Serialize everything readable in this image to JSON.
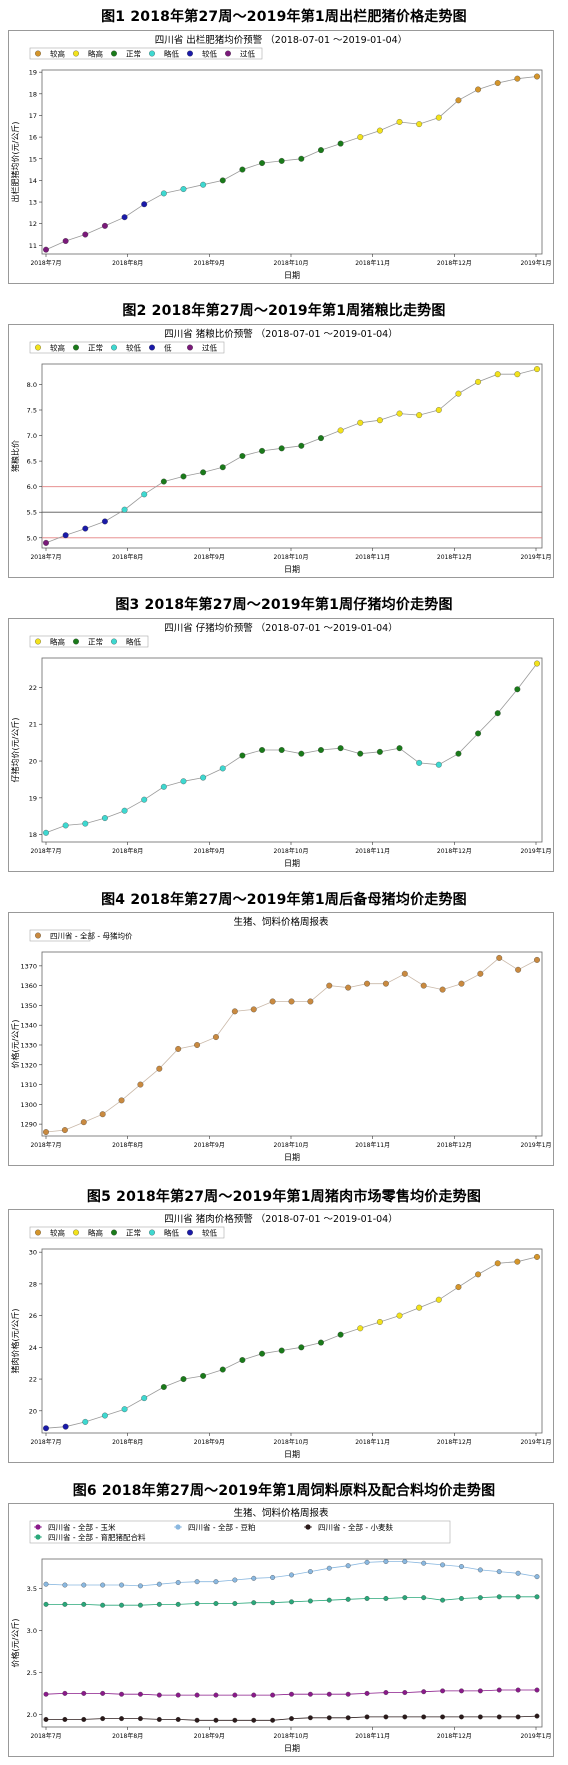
{
  "chart_data": [
    {
      "type": "line",
      "figure_title": "图1  2018年第27周～2019年第1周出栏肥猪价格走势图",
      "title": "四川省 出栏肥猪均价预警",
      "subtitle": "（2018-07-01 ～2019-01-04）",
      "xlabel": "日期",
      "ylabel": "出栏肥猪均价(元/公斤)",
      "x_ticks": [
        "2018年7月",
        "2018年8月",
        "2018年9月",
        "2018年10月",
        "2018年11月",
        "2018年12月",
        "2019年1月"
      ],
      "y_ticks": [
        "11",
        "12",
        "13",
        "14",
        "15",
        "16",
        "17",
        "18",
        "19"
      ],
      "ylim": [
        10.6,
        19.1
      ],
      "grid": false,
      "legend": [
        {
          "label": "较高",
          "color": "#d4952b"
        },
        {
          "label": "略高",
          "color": "#f2e21c"
        },
        {
          "label": "正常",
          "color": "#1a7a1a"
        },
        {
          "label": "略低",
          "color": "#3ed8d0"
        },
        {
          "label": "较低",
          "color": "#1a1aa8"
        },
        {
          "label": "过低",
          "color": "#7a1a7a"
        }
      ],
      "series": [
        {
          "values": [
            10.8,
            11.2,
            11.5,
            11.9,
            12.3,
            12.9,
            13.4,
            13.6,
            13.8,
            14.0,
            14.5,
            14.8,
            14.9,
            15.0,
            15.4,
            15.7,
            16.0,
            16.3,
            16.7,
            16.6,
            16.9,
            17.7,
            18.2,
            18.5,
            18.7,
            18.8
          ],
          "levels": [
            5,
            5,
            5,
            5,
            4,
            4,
            3,
            3,
            3,
            2,
            2,
            2,
            2,
            2,
            2,
            2,
            1,
            1,
            1,
            1,
            1,
            0,
            0,
            0,
            0,
            0
          ]
        }
      ]
    },
    {
      "type": "line",
      "figure_title": "图2  2018年第27周～2019年第1周猪粮比走势图",
      "title": "四川省 猪粮比价预警",
      "subtitle": "（2018-07-01 ～2019-01-04）",
      "xlabel": "日期",
      "ylabel": "猪粮比价",
      "x_ticks": [
        "2018年7月",
        "2018年8月",
        "2018年9月",
        "2018年10月",
        "2018年11月",
        "2018年12月",
        "2019年1月"
      ],
      "y_ticks": [
        "5.0",
        "5.5",
        "6.0",
        "6.5",
        "7.0",
        "7.5",
        "8.0"
      ],
      "ylim": [
        4.8,
        8.4
      ],
      "grid": false,
      "reference_lines": [
        {
          "y": 5.0,
          "color": "#e38080"
        },
        {
          "y": 5.5,
          "color": "#555555"
        },
        {
          "y": 6.0,
          "color": "#e38080"
        }
      ],
      "legend": [
        {
          "label": "较高",
          "color": "#f2e21c"
        },
        {
          "label": "正常",
          "color": "#1a7a1a"
        },
        {
          "label": "较低",
          "color": "#3ed8d0"
        },
        {
          "label": "低",
          "color": "#1a1aa8"
        },
        {
          "label": "过低",
          "color": "#7a1a7a"
        }
      ],
      "series": [
        {
          "values": [
            4.9,
            5.05,
            5.18,
            5.32,
            5.55,
            5.85,
            6.1,
            6.2,
            6.28,
            6.38,
            6.6,
            6.7,
            6.75,
            6.8,
            6.95,
            7.1,
            7.25,
            7.3,
            7.43,
            7.4,
            7.5,
            7.82,
            8.05,
            8.2,
            8.2,
            8.3
          ],
          "levels": [
            4,
            3,
            3,
            3,
            2,
            2,
            1,
            1,
            1,
            1,
            1,
            1,
            1,
            1,
            1,
            0,
            0,
            0,
            0,
            0,
            0,
            0,
            0,
            0,
            0,
            0
          ]
        }
      ]
    },
    {
      "type": "line",
      "figure_title": "图3  2018年第27周～2019年第1周仔猪均价走势图",
      "title": "四川省 仔猪均价预警",
      "subtitle": "（2018-07-01 ～2019-01-04）",
      "xlabel": "日期",
      "ylabel": "仔猪均价(元/公斤)",
      "x_ticks": [
        "2018年7月",
        "2018年8月",
        "2018年9月",
        "2018年10月",
        "2018年11月",
        "2018年12月",
        "2019年1月"
      ],
      "y_ticks": [
        "18",
        "19",
        "20",
        "21",
        "22"
      ],
      "ylim": [
        17.8,
        22.8
      ],
      "grid": false,
      "legend": [
        {
          "label": "略高",
          "color": "#f2e21c"
        },
        {
          "label": "正常",
          "color": "#1a7a1a"
        },
        {
          "label": "略低",
          "color": "#3ed8d0"
        }
      ],
      "series": [
        {
          "values": [
            18.05,
            18.25,
            18.3,
            18.45,
            18.65,
            18.95,
            19.3,
            19.45,
            19.55,
            19.8,
            20.15,
            20.3,
            20.3,
            20.2,
            20.3,
            20.35,
            20.2,
            20.25,
            20.35,
            19.95,
            19.9,
            20.2,
            20.75,
            21.3,
            21.95,
            22.65
          ],
          "levels": [
            2,
            2,
            2,
            2,
            2,
            2,
            2,
            2,
            2,
            2,
            1,
            1,
            1,
            1,
            1,
            1,
            1,
            1,
            1,
            2,
            2,
            1,
            1,
            1,
            1,
            0
          ]
        }
      ]
    },
    {
      "type": "line",
      "figure_title": "图4  2018年第27周～2019年第1周后备母猪均价走势图",
      "title": "生猪、饲料价格周报表",
      "xlabel": "日期",
      "ylabel": "价格(元/公斤)",
      "x_ticks": [
        "2018年7月",
        "2018年8月",
        "2018年9月",
        "2018年10月",
        "2018年11月",
        "2018年12月",
        "2019年1月"
      ],
      "y_ticks": [
        "1290",
        "1300",
        "1310",
        "1320",
        "1330",
        "1340",
        "1350",
        "1360",
        "1370"
      ],
      "ylim": [
        1284,
        1377
      ],
      "grid": false,
      "legend": [
        {
          "label": "四川省 - 全部 - 母猪均价",
          "color": "#c98a40"
        }
      ],
      "series": [
        {
          "name": "四川省 - 全部 - 母猪均价",
          "values": [
            1286,
            1287,
            1291,
            1295,
            1302,
            1310,
            1318,
            1328,
            1330,
            1334,
            1347,
            1348,
            1352,
            1352,
            1352,
            1360,
            1359,
            1361,
            1361,
            1366,
            1360,
            1358,
            1361,
            1366,
            1374,
            1368,
            1373
          ]
        }
      ]
    },
    {
      "type": "line",
      "figure_title": "图5  2018年第27周～2019年第1周猪肉市场零售均价走势图",
      "title": "四川省 猪肉价格预警",
      "subtitle": "（2018-07-01 ～2019-01-04）",
      "xlabel": "日期",
      "ylabel": "猪肉价格(元/公斤)",
      "x_ticks": [
        "2018年7月",
        "2018年8月",
        "2018年9月",
        "2018年10月",
        "2018年11月",
        "2018年12月",
        "2019年1月"
      ],
      "y_ticks": [
        "20",
        "22",
        "24",
        "26",
        "28",
        "30"
      ],
      "ylim": [
        18.6,
        30.2
      ],
      "grid": false,
      "legend": [
        {
          "label": "较高",
          "color": "#d4952b"
        },
        {
          "label": "略高",
          "color": "#f2e21c"
        },
        {
          "label": "正常",
          "color": "#1a7a1a"
        },
        {
          "label": "略低",
          "color": "#3ed8d0"
        },
        {
          "label": "较低",
          "color": "#1a1aa8"
        }
      ],
      "series": [
        {
          "values": [
            18.9,
            19.0,
            19.3,
            19.7,
            20.1,
            20.8,
            21.5,
            22.0,
            22.2,
            22.6,
            23.2,
            23.6,
            23.8,
            24.0,
            24.3,
            24.8,
            25.2,
            25.6,
            26.0,
            26.5,
            27.0,
            27.8,
            28.6,
            29.3,
            29.4,
            29.7
          ],
          "levels": [
            4,
            4,
            3,
            3,
            3,
            3,
            2,
            2,
            2,
            2,
            2,
            2,
            2,
            2,
            2,
            2,
            1,
            1,
            1,
            1,
            1,
            0,
            0,
            0,
            0,
            0
          ]
        }
      ]
    },
    {
      "type": "line",
      "figure_title": "图6  2018年第27周～2019年第1周饲料原料及配合料均价走势图",
      "title": "生猪、饲料价格周报表",
      "xlabel": "日期",
      "ylabel": "价格(元/公斤)",
      "x_ticks": [
        "2018年7月",
        "2018年8月",
        "2018年9月",
        "2018年10月",
        "2018年11月",
        "2018年12月",
        "2019年1月"
      ],
      "y_ticks": [
        "2.0",
        "2.5",
        "3.0",
        "3.5"
      ],
      "ylim": [
        1.85,
        3.85
      ],
      "grid": false,
      "legend": [
        {
          "label": "四川省 - 全部 - 玉米",
          "color": "#8a1a8a"
        },
        {
          "label": "四川省 - 全部 - 豆粕",
          "color": "#8ab8e0"
        },
        {
          "label": "四川省 - 全部 - 小麦麸",
          "color": "#2a1a1a"
        },
        {
          "label": "四川省 - 全部 - 育肥猪配合料",
          "color": "#2aa87a"
        }
      ],
      "series": [
        {
          "name": "四川省 - 全部 - 玉米",
          "color": "#8a1a8a",
          "values": [
            2.24,
            2.25,
            2.25,
            2.25,
            2.24,
            2.24,
            2.23,
            2.23,
            2.23,
            2.23,
            2.23,
            2.23,
            2.23,
            2.24,
            2.24,
            2.24,
            2.24,
            2.25,
            2.26,
            2.26,
            2.27,
            2.28,
            2.28,
            2.28,
            2.29,
            2.29,
            2.29
          ]
        },
        {
          "name": "四川省 - 全部 - 豆粕",
          "color": "#8ab8e0",
          "values": [
            3.55,
            3.54,
            3.54,
            3.54,
            3.54,
            3.53,
            3.55,
            3.57,
            3.58,
            3.58,
            3.6,
            3.62,
            3.63,
            3.66,
            3.7,
            3.74,
            3.77,
            3.81,
            3.82,
            3.82,
            3.8,
            3.78,
            3.76,
            3.72,
            3.7,
            3.68,
            3.64
          ]
        },
        {
          "name": "四川省 - 全部 - 小麦麸",
          "color": "#2a1a1a",
          "values": [
            1.94,
            1.94,
            1.94,
            1.95,
            1.95,
            1.95,
            1.94,
            1.94,
            1.93,
            1.93,
            1.93,
            1.93,
            1.93,
            1.95,
            1.96,
            1.96,
            1.96,
            1.97,
            1.97,
            1.97,
            1.97,
            1.97,
            1.97,
            1.97,
            1.97,
            1.97,
            1.98
          ]
        },
        {
          "name": "四川省 - 全部 - 育肥猪配合料",
          "color": "#2aa87a",
          "values": [
            3.31,
            3.31,
            3.31,
            3.3,
            3.3,
            3.3,
            3.31,
            3.31,
            3.32,
            3.32,
            3.32,
            3.33,
            3.33,
            3.34,
            3.35,
            3.36,
            3.37,
            3.38,
            3.38,
            3.39,
            3.39,
            3.36,
            3.38,
            3.39,
            3.4,
            3.4,
            3.4
          ]
        }
      ]
    }
  ]
}
